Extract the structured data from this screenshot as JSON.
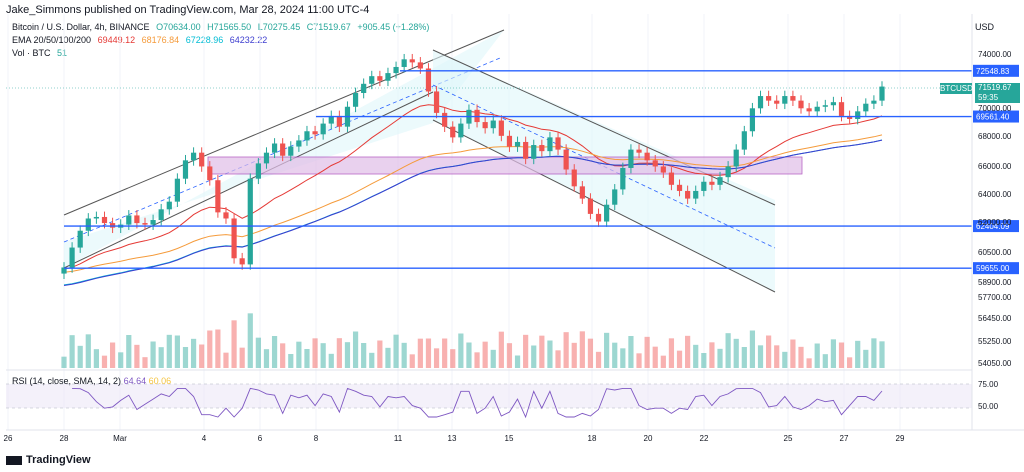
{
  "header": {
    "publisher": "Jake_Simmons published on TradingView.com, Mar 28, 2024 11:00 UTC-4"
  },
  "symbol": {
    "title": "Bitcoin / U.S. Dollar, 4h, BINANCE",
    "ohlc": {
      "o": "O70634.00",
      "h": "H71565.50",
      "l": "L70275.45",
      "c": "C71519.67",
      "chg": "+905.45 (+1.28%)"
    },
    "currency": "USD"
  },
  "ema": {
    "label": "EMA 20/50/100/200",
    "v20": "69449.12",
    "v50": "68176.84",
    "v100": "67228.96",
    "v200": "64232.22"
  },
  "vol": {
    "label": "Vol · BTC",
    "value": "51"
  },
  "rsi": {
    "label": "RSI (14, close, SMA, 14, 2)",
    "v1": "64.64",
    "v2": "60.06"
  },
  "price_badge": {
    "symbol": "BTCUSD",
    "price": "71519.67",
    "countdown": "59:35"
  },
  "levels": [
    {
      "label": "72548.83"
    },
    {
      "label": "69561.40"
    },
    {
      "label": "62404.09"
    },
    {
      "label": "59655.00"
    }
  ],
  "colors": {
    "up": "#26a69a",
    "down": "#ef5350",
    "level": "#2962ff",
    "rsi": "#7e57c2"
  },
  "footer": {
    "logo": "TradingView"
  },
  "chart_data": {
    "type": "candlestick",
    "title": "Bitcoin / U.S. Dollar, 4h, BINANCE",
    "ylim": [
      53000,
      76000
    ],
    "y_ticks": [
      "74000.00",
      "70000.00",
      "68000.00",
      "66000.00",
      "64000.00",
      "62000.00",
      "60500.00",
      "58900.00",
      "57700.00",
      "56450.00",
      "55250.00",
      "54050.00"
    ],
    "x_ticks": [
      "26",
      "28",
      "Mar",
      "4",
      "6",
      "8",
      "11",
      "13",
      "15",
      "18",
      "20",
      "22",
      "25",
      "27",
      "29"
    ],
    "rsi_ticks": [
      "75.00",
      "50.00"
    ],
    "horizontal_levels": [
      72548.83,
      69561.4,
      62404.09,
      59655.0
    ],
    "close_series": [
      59700,
      61000,
      62100,
      62900,
      63000,
      62600,
      62300,
      62500,
      63100,
      62600,
      62500,
      62800,
      63500,
      64000,
      65500,
      66700,
      67200,
      66300,
      65400,
      63300,
      62900,
      60300,
      59900,
      65500,
      66500,
      67200,
      67800,
      67000,
      67600,
      68000,
      68600,
      68400,
      69100,
      69600,
      68900,
      70200,
      71100,
      71700,
      72200,
      71900,
      72400,
      72800,
      73300,
      73100,
      72700,
      71200,
      69800,
      68900,
      68200,
      69100,
      70000,
      69200,
      68800,
      69300,
      68300,
      67600,
      67900,
      66800,
      67700,
      67300,
      68200,
      67400,
      66100,
      65000,
      64200,
      63200,
      62700,
      63800,
      64800,
      66200,
      67400,
      67200,
      66700,
      66300,
      65900,
      65100,
      64700,
      64200,
      64700,
      65300,
      65100,
      65600,
      66300,
      67400,
      68600,
      70100,
      70900,
      70600,
      70400,
      70900,
      70600,
      70100,
      69900,
      70200,
      70300,
      70500,
      69600,
      69400,
      69900,
      70400,
      70600,
      71519.67
    ]
  }
}
